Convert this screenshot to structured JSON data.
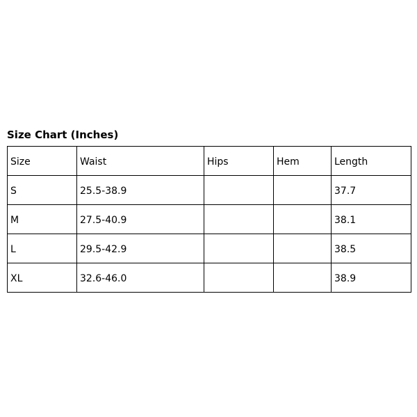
{
  "title": "Size Chart (Inches)",
  "headers": [
    "Size",
    "Waist",
    "Hips",
    "Hem",
    "Length"
  ],
  "rows": [
    [
      "S",
      "25.5-38.9",
      "",
      "",
      "37.7"
    ],
    [
      "M",
      "27.5-40.9",
      "",
      "",
      "38.1"
    ],
    [
      "L",
      "29.5-42.9",
      "",
      "",
      "38.5"
    ],
    [
      "XL",
      "32.6-46.0",
      "",
      "",
      "38.9"
    ]
  ]
}
